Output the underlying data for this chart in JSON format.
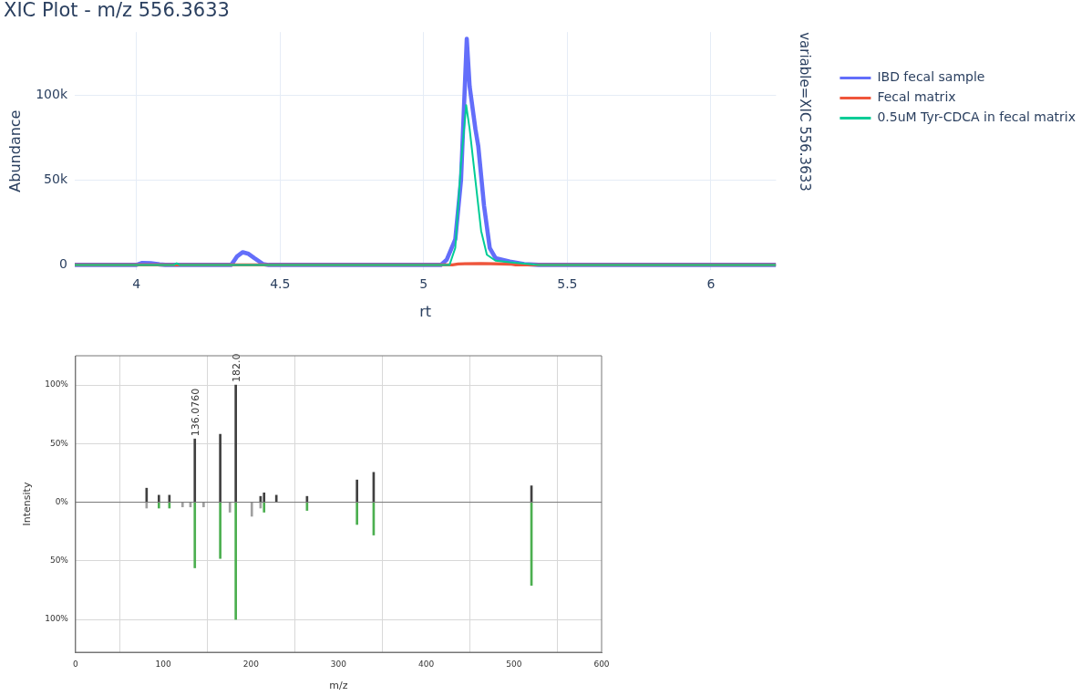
{
  "chart_data": [
    {
      "type": "line",
      "title": "XIC Plot - m/z 556.3633",
      "xlabel": "rt",
      "ylabel": "Abundance",
      "annotations": [
        "variable=XIC 556.3633"
      ],
      "xlim": [
        3.785,
        6.227
      ],
      "xticks": [
        4,
        4.5,
        5,
        5.5,
        6
      ],
      "ylim": [
        -3000,
        137000
      ],
      "yticks": [
        0,
        {
          "value": 50000,
          "label": "50k"
        },
        {
          "value": 100000,
          "label": "100k"
        }
      ],
      "grid": true,
      "legend": "right",
      "marker": "none",
      "line_style": "solid",
      "series": [
        {
          "name": "IBD fecal sample",
          "color": "#636efa",
          "x": [
            3.785,
            4.0,
            4.02,
            4.05,
            4.08,
            4.1,
            4.33,
            4.35,
            4.37,
            4.39,
            4.41,
            4.44,
            4.46,
            5.06,
            5.08,
            5.11,
            5.13,
            5.15,
            5.16,
            5.18,
            5.19,
            5.21,
            5.23,
            5.25,
            5.3,
            5.35,
            5.4,
            6.227
          ],
          "values": [
            0,
            0,
            1200,
            1000,
            300,
            0,
            0,
            5000,
            7500,
            6500,
            4000,
            500,
            0,
            0,
            3000,
            15000,
            50000,
            133000,
            105000,
            80000,
            70000,
            35000,
            10000,
            4000,
            2000,
            500,
            0,
            0
          ]
        },
        {
          "name": "Fecal matrix",
          "color": "#ef553b",
          "x": [
            3.785,
            5.1,
            5.12,
            5.2,
            5.3,
            5.32,
            6.227
          ],
          "values": [
            0,
            0,
            600,
            800,
            500,
            0,
            0
          ]
        },
        {
          "name": "0.5uM Tyr-CDCA in fecal matrix",
          "color": "#00cc96",
          "x": [
            3.785,
            4.13,
            4.14,
            4.15,
            5.09,
            5.11,
            5.13,
            5.148,
            5.16,
            5.18,
            5.2,
            5.22,
            5.25,
            5.3,
            5.35,
            5.4,
            6.227
          ],
          "values": [
            0,
            0,
            1000,
            0,
            0,
            10000,
            60000,
            94000,
            80000,
            50000,
            20000,
            6000,
            2500,
            1500,
            800,
            0,
            0
          ]
        }
      ]
    },
    {
      "type": "bar",
      "xlabel": "m/z",
      "ylabel": "Intensity",
      "grid": true,
      "legend": false,
      "xlim": [
        0,
        600
      ],
      "xticks": [
        0,
        100,
        200,
        300,
        400,
        500,
        600
      ],
      "ylim": [
        -128,
        125
      ],
      "yticks": [
        {
          "value": 100,
          "label": "100%"
        },
        {
          "value": 50,
          "label": "50%"
        },
        {
          "value": 0,
          "label": "0%"
        },
        {
          "value": -50,
          "label": "50%"
        },
        {
          "value": -100,
          "label": "100%"
        }
      ],
      "annotations": [
        {
          "text": "136.0760",
          "x": 136,
          "y": 54
        },
        {
          "text": "182.0",
          "x": 182.7,
          "y": 100
        }
      ],
      "series": [
        {
          "color": "#404040",
          "x": [
            81,
            95,
            107,
            136,
            165,
            182.7,
            211,
            215,
            229,
            264,
            321,
            340,
            520
          ],
          "values": [
            12,
            6,
            6,
            54,
            58,
            100,
            5,
            8,
            6,
            5,
            19,
            25.5,
            14
          ]
        },
        {
          "color": "#4caf50",
          "colors": [
            "#a0a0a0",
            "#4caf50",
            "#4caf50",
            "#a0a0a0",
            "#a0a0a0",
            "#4caf50",
            "#a0a0a0",
            "#4caf50",
            "#a0a0a0",
            "#4caf50",
            "#a0a0a0",
            "#a0a0a0",
            "#4caf50",
            "#4caf50",
            "#4caf50",
            "#4caf50",
            "#4caf50"
          ],
          "x": [
            81,
            95,
            107,
            122,
            131,
            136,
            146,
            165,
            176,
            182.7,
            201,
            211,
            215,
            264,
            321,
            340,
            520
          ],
          "values": [
            -5,
            -5,
            -5,
            -4,
            -4,
            -56,
            -4,
            -48,
            -8.5,
            -100,
            -12,
            -5,
            -8.5,
            -7,
            -19,
            -28,
            -71
          ]
        }
      ]
    }
  ]
}
